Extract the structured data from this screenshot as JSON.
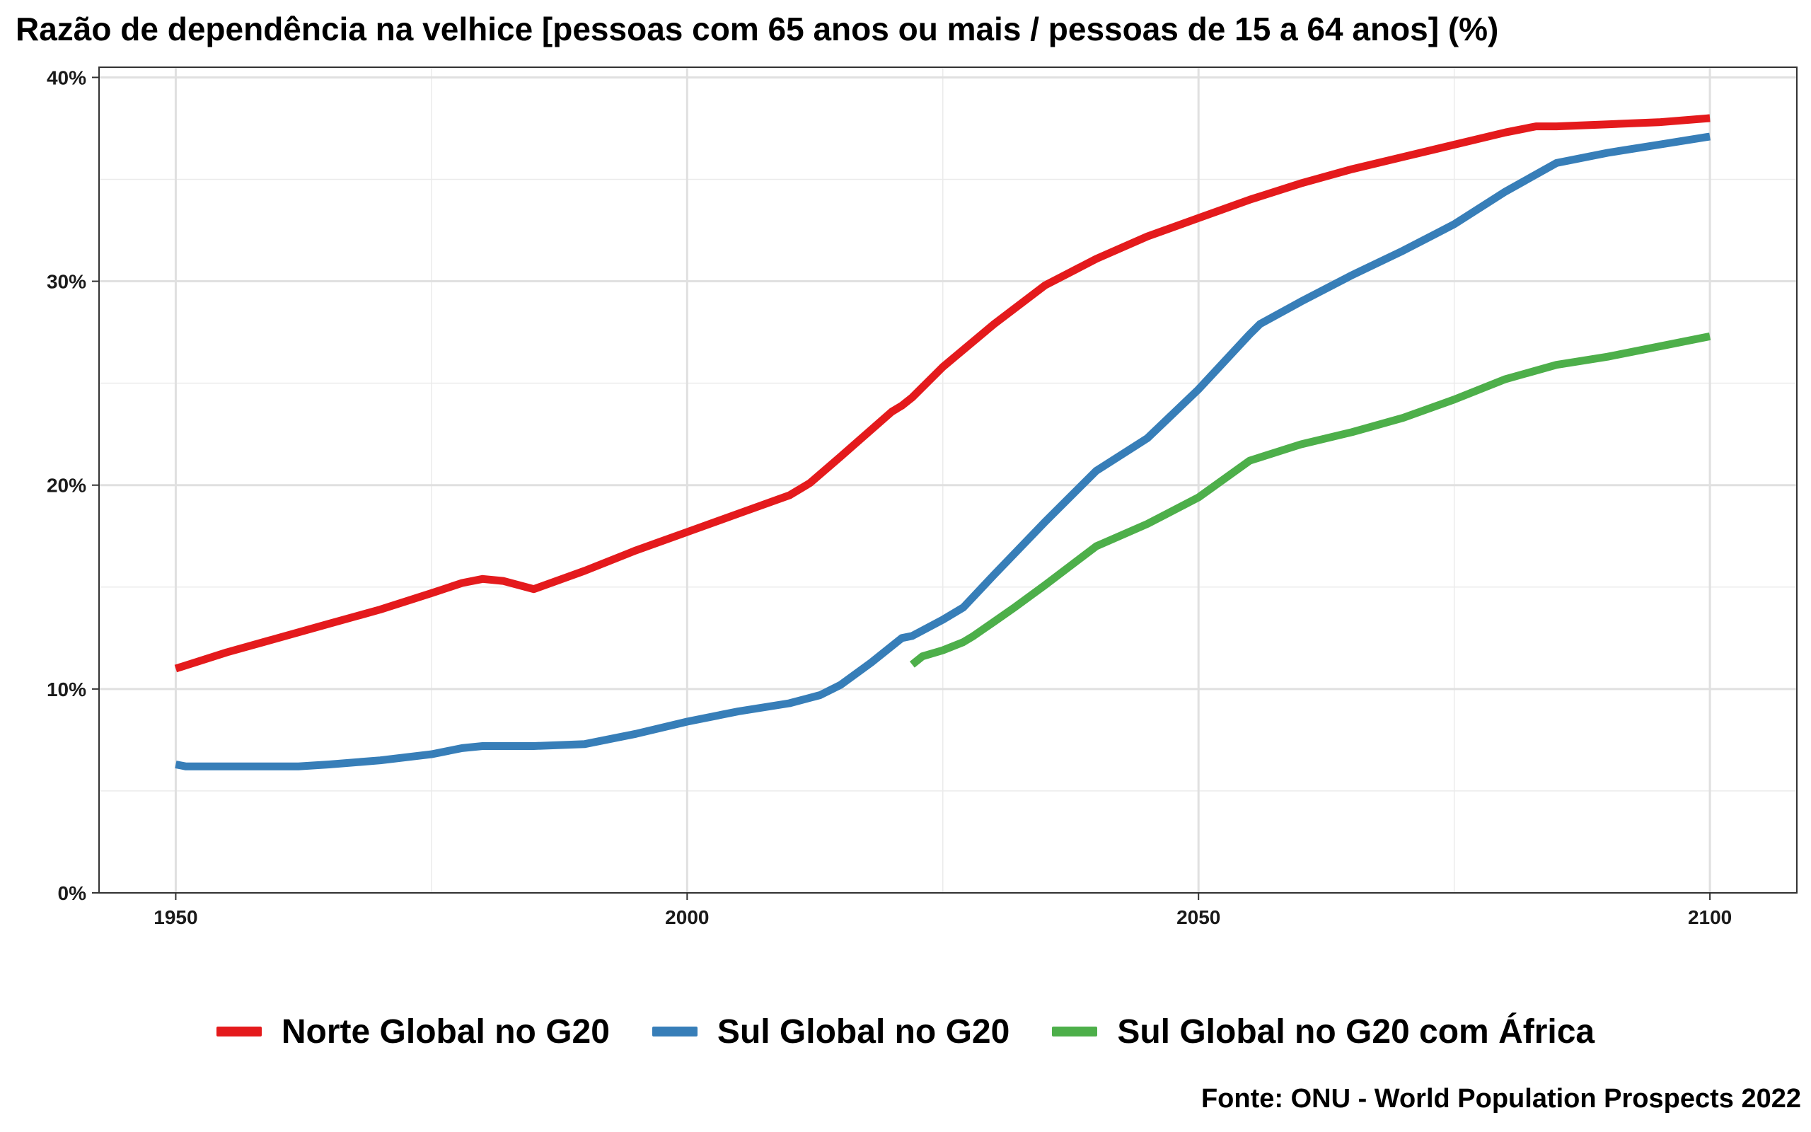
{
  "chart_data": {
    "type": "line",
    "title": "Razão de dependência na velhice [pessoas com 65 anos ou mais / pessoas de 15 a 64 anos] (%)",
    "caption": "Fonte: ONU - World Population Prospects 2022",
    "xlabel": "",
    "ylabel": "",
    "xlim": [
      1942.5,
      2108.5
    ],
    "ylim": [
      0,
      40.5
    ],
    "x_ticks": [
      1950,
      2000,
      2050,
      2100
    ],
    "y_ticks": [
      0,
      10,
      20,
      30,
      40
    ],
    "y_tick_labels": [
      "0%",
      "10%",
      "20%",
      "30%",
      "40%"
    ],
    "grid": true,
    "legend_position": "bottom",
    "series": [
      {
        "name": "Norte Global no G20",
        "color": "#E41A1C",
        "x": [
          1950,
          1955,
          1960,
          1965,
          1970,
          1975,
          1978,
          1980,
          1982,
          1985,
          1990,
          1995,
          2000,
          2005,
          2010,
          2012,
          2015,
          2020,
          2021,
          2022,
          2025,
          2030,
          2035,
          2040,
          2045,
          2050,
          2055,
          2060,
          2065,
          2070,
          2075,
          2080,
          2083,
          2085,
          2090,
          2095,
          2100
        ],
        "y": [
          11.0,
          11.8,
          12.5,
          13.2,
          13.9,
          14.7,
          15.2,
          15.4,
          15.3,
          14.9,
          15.8,
          16.8,
          17.7,
          18.6,
          19.5,
          20.1,
          21.4,
          23.6,
          23.9,
          24.3,
          25.8,
          27.9,
          29.8,
          31.1,
          32.2,
          33.1,
          34.0,
          34.8,
          35.5,
          36.1,
          36.7,
          37.3,
          37.6,
          37.6,
          37.7,
          37.8,
          38.0
        ]
      },
      {
        "name": "Sul Global no G20",
        "color": "#377EB8",
        "x": [
          1950,
          1951,
          1955,
          1958,
          1960,
          1962,
          1965,
          1970,
          1975,
          1978,
          1980,
          1985,
          1990,
          1995,
          2000,
          2005,
          2010,
          2013,
          2015,
          2018,
          2020,
          2021,
          2022,
          2025,
          2027,
          2030,
          2035,
          2040,
          2045,
          2050,
          2055,
          2056,
          2060,
          2065,
          2070,
          2075,
          2080,
          2085,
          2090,
          2095,
          2100
        ],
        "y": [
          6.3,
          6.2,
          6.2,
          6.2,
          6.2,
          6.2,
          6.3,
          6.5,
          6.8,
          7.1,
          7.2,
          7.2,
          7.3,
          7.8,
          8.4,
          8.9,
          9.3,
          9.7,
          10.2,
          11.3,
          12.1,
          12.5,
          12.6,
          13.4,
          14.0,
          15.6,
          18.2,
          20.7,
          22.3,
          24.7,
          27.4,
          27.9,
          29.0,
          30.3,
          31.5,
          32.8,
          34.4,
          35.8,
          36.3,
          36.7,
          37.1
        ]
      },
      {
        "name": "Sul Global no G20 com África",
        "color": "#4DAF4A",
        "x": [
          2022,
          2023,
          2025,
          2027,
          2028,
          2030,
          2032,
          2035,
          2040,
          2045,
          2050,
          2055,
          2060,
          2065,
          2070,
          2075,
          2080,
          2085,
          2090,
          2095,
          2100
        ],
        "y": [
          11.2,
          11.6,
          11.9,
          12.3,
          12.6,
          13.3,
          14.0,
          15.1,
          17.0,
          18.1,
          19.4,
          21.2,
          22.0,
          22.6,
          23.3,
          24.2,
          25.2,
          25.9,
          26.3,
          26.8,
          27.3
        ]
      }
    ]
  }
}
